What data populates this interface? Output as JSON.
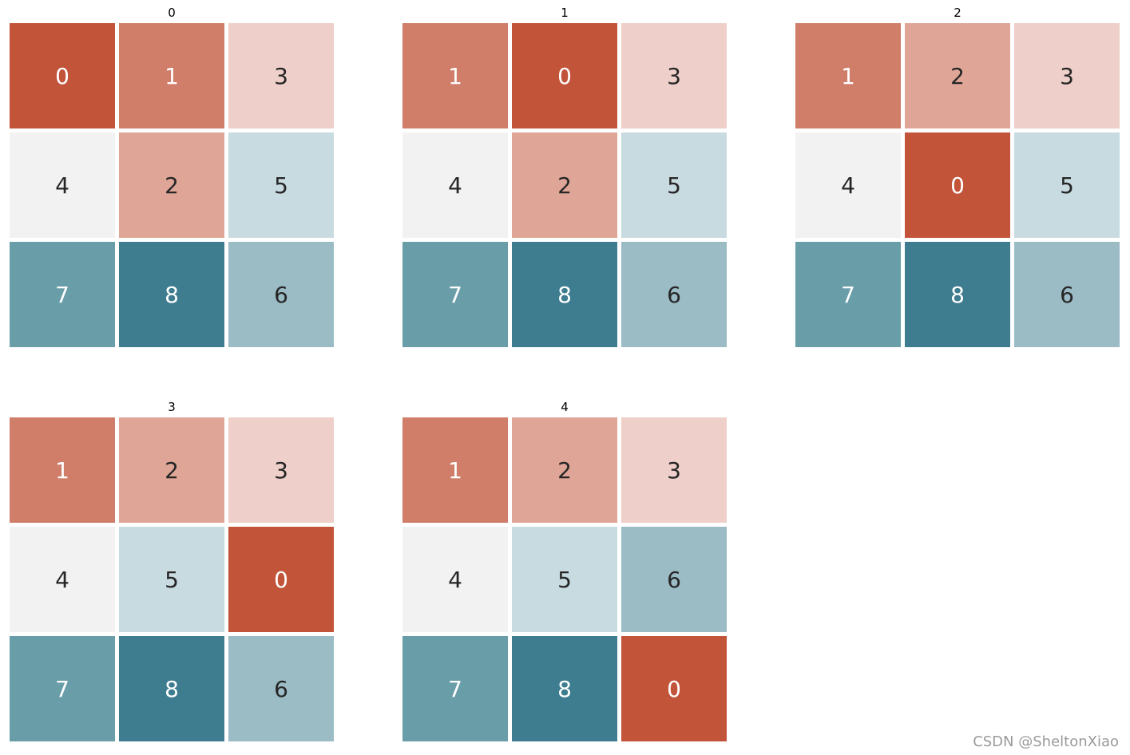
{
  "chart_data": {
    "type": "heatmap",
    "colorbar": false,
    "colors": {
      "0": "#c2543a",
      "1": "#d07e6a",
      "2": "#dfa597",
      "3": "#efcfc9",
      "4": "#f2f2f2",
      "5": "#c8dbe0",
      "6": "#9bbbc5",
      "7": "#699ea9",
      "8": "#3e7d90"
    },
    "text_colors": {
      "light": "#ffffff",
      "dark": "#262626"
    },
    "panels": [
      {
        "title": "0",
        "cells": [
          [
            0,
            1,
            3
          ],
          [
            4,
            2,
            5
          ],
          [
            7,
            8,
            6
          ]
        ]
      },
      {
        "title": "1",
        "cells": [
          [
            1,
            0,
            3
          ],
          [
            4,
            2,
            5
          ],
          [
            7,
            8,
            6
          ]
        ]
      },
      {
        "title": "2",
        "cells": [
          [
            1,
            2,
            3
          ],
          [
            4,
            0,
            5
          ],
          [
            7,
            8,
            6
          ]
        ]
      },
      {
        "title": "3",
        "cells": [
          [
            1,
            2,
            3
          ],
          [
            4,
            5,
            0
          ],
          [
            7,
            8,
            6
          ]
        ]
      },
      {
        "title": "4",
        "cells": [
          [
            1,
            2,
            3
          ],
          [
            4,
            5,
            6
          ],
          [
            7,
            8,
            0
          ]
        ]
      }
    ]
  },
  "watermark": "CSDN @SheltonXiao"
}
